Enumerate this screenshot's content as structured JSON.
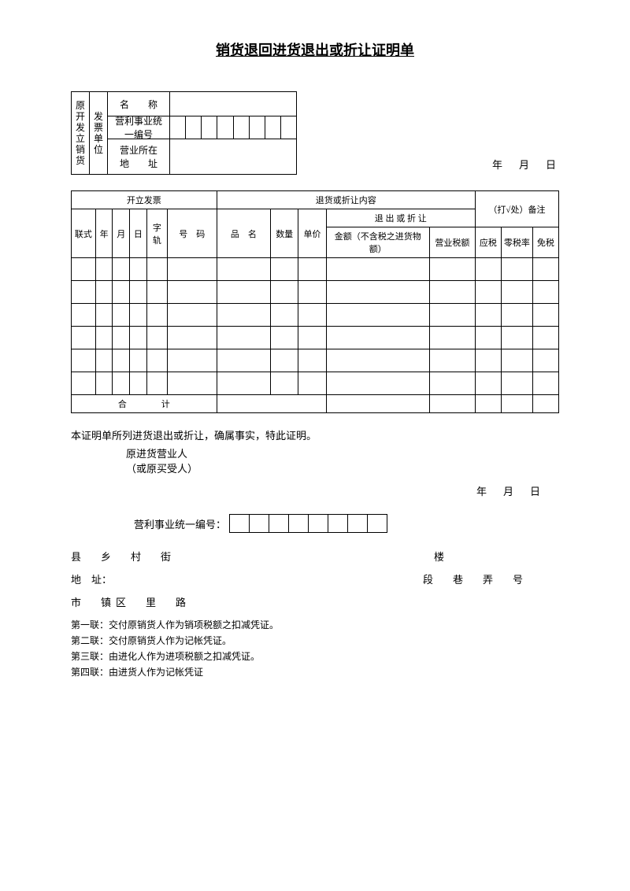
{
  "title": "销货退回进货退出或折让证明单",
  "issuer_vert1": "原开发立销货",
  "issuer_vert2": "发票单位",
  "issuer_rows": [
    {
      "label": "名　　称",
      "type": "blank"
    },
    {
      "label": "营利事业统一编号",
      "type": "digits",
      "count": 8
    },
    {
      "label": "营业所在\n地　　址",
      "type": "blank"
    }
  ],
  "date_ymr": "年　月　日",
  "main_headers": {
    "invoice": "开立发票",
    "content": "退货或折让内容",
    "remark": "（打√处）备注",
    "format": "联式",
    "year": "年",
    "month": "月",
    "day": "日",
    "track": "字轨",
    "number": "号　码",
    "item": "品　名",
    "qty": "数量",
    "price": "单价",
    "return": "退 出 或 折 让",
    "amount": "金额（不含税之进货物额）",
    "tax": "营业税额",
    "tax_ying": "应税",
    "tax_zero": "零税率",
    "tax_free": "免税",
    "total": "合　　　　计"
  },
  "blank_rows": 6,
  "cert_line": "本证明单所列进货退出或折让，确属事实，特此证明。",
  "orig_buyer1": "原进货营业人",
  "orig_buyer2": "（或原买受人）",
  "unified_label": "营利事业统一编号：",
  "unified_count": 8,
  "addr1_left": "县　乡　村　街",
  "addr1_right": "楼",
  "addr2_left": "地　址：",
  "addr2_right": "段　巷　弄　号",
  "addr3_left": "市　镇区　里　路",
  "notes": [
    "第一联：交付原销货人作为销项税额之扣减凭证。",
    "第二联：交付原销货人作为记帐凭证。",
    "第三联：由进化人作为进项税额之扣减凭证。",
    "第四联：由进货人作为记帐凭证"
  ]
}
